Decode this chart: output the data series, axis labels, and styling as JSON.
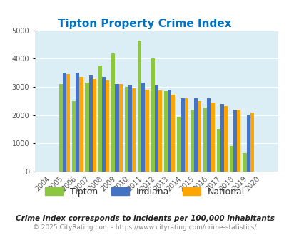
{
  "title": "Tipton Property Crime Index",
  "years": [
    2004,
    2005,
    2006,
    2007,
    2008,
    2009,
    2010,
    2011,
    2012,
    2013,
    2014,
    2015,
    2016,
    2017,
    2018,
    2019,
    2020
  ],
  "tipton": [
    0,
    3100,
    2500,
    3150,
    3750,
    4200,
    3000,
    4650,
    4000,
    2850,
    1950,
    2200,
    2280,
    1500,
    900,
    650,
    0
  ],
  "indiana": [
    0,
    3500,
    3500,
    3400,
    3350,
    3100,
    3050,
    3150,
    3050,
    2900,
    2600,
    2600,
    2600,
    2400,
    2200,
    2000,
    0
  ],
  "national": [
    0,
    3450,
    3350,
    3280,
    3220,
    3100,
    2950,
    2900,
    2870,
    2720,
    2600,
    2500,
    2450,
    2330,
    2200,
    2100,
    0
  ],
  "tipton_color": "#8dc63f",
  "indiana_color": "#4472c4",
  "national_color": "#ffa500",
  "bg_color": "#dceef5",
  "title_color": "#0070c0",
  "subtitle": "Crime Index corresponds to incidents per 100,000 inhabitants",
  "footer": "© 2025 CityRating.com - https://www.cityrating.com/crime-statistics/",
  "footer_color": "#888888",
  "footer_link_color": "#4472c4",
  "ylim": [
    0,
    5000
  ],
  "yticks": [
    0,
    1000,
    2000,
    3000,
    4000,
    5000
  ]
}
